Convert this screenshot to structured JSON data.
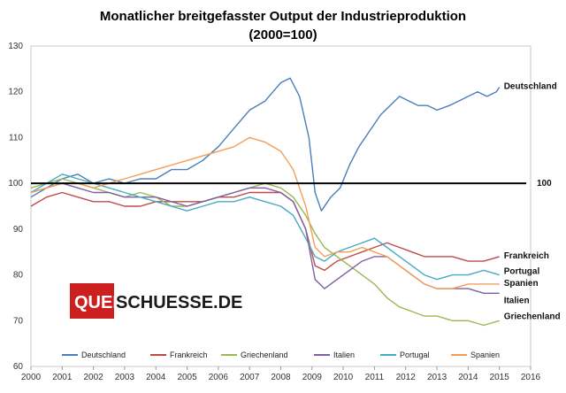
{
  "chart_data": {
    "type": "line",
    "title": "Monatlicher breitgefasster Output der Industrieproduktion",
    "subtitle": "(2000=100)",
    "xlabel": "",
    "ylabel": "",
    "xlim": [
      2000,
      2016
    ],
    "ylim": [
      60,
      130
    ],
    "y_ticks": [
      60,
      70,
      80,
      90,
      100,
      110,
      120,
      130
    ],
    "x_ticks": [
      "2000",
      "2001",
      "2002",
      "2003",
      "2004",
      "2005",
      "2006",
      "2007",
      "2008",
      "2009",
      "2010",
      "2011",
      "2012",
      "2013",
      "2014",
      "2015",
      "2016"
    ],
    "grid": false,
    "legend_position": "bottom",
    "reference_line": {
      "value": 100,
      "label": "100",
      "color": "#000000"
    },
    "watermark": {
      "part1": "QUER",
      "part2": "SCHUESSE.DE"
    },
    "series": [
      {
        "name": "Deutschland",
        "end_label": "Deutschland",
        "color": "#4a7ebb",
        "points": [
          [
            2000.0,
            97
          ],
          [
            2000.5,
            99
          ],
          [
            2001.0,
            101
          ],
          [
            2001.5,
            102
          ],
          [
            2002.0,
            100
          ],
          [
            2002.5,
            101
          ],
          [
            2003.0,
            100
          ],
          [
            2003.5,
            101
          ],
          [
            2004.0,
            101
          ],
          [
            2004.5,
            103
          ],
          [
            2005.0,
            103
          ],
          [
            2005.5,
            105
          ],
          [
            2006.0,
            108
          ],
          [
            2006.5,
            112
          ],
          [
            2007.0,
            116
          ],
          [
            2007.5,
            118
          ],
          [
            2008.0,
            122
          ],
          [
            2008.3,
            123
          ],
          [
            2008.6,
            119
          ],
          [
            2008.9,
            110
          ],
          [
            2009.1,
            98
          ],
          [
            2009.3,
            94
          ],
          [
            2009.6,
            97
          ],
          [
            2009.9,
            99
          ],
          [
            2010.2,
            104
          ],
          [
            2010.5,
            108
          ],
          [
            2010.9,
            112
          ],
          [
            2011.2,
            115
          ],
          [
            2011.5,
            117
          ],
          [
            2011.8,
            119
          ],
          [
            2012.1,
            118
          ],
          [
            2012.4,
            117
          ],
          [
            2012.7,
            117
          ],
          [
            2013.0,
            116
          ],
          [
            2013.4,
            117
          ],
          [
            2013.7,
            118
          ],
          [
            2014.0,
            119
          ],
          [
            2014.3,
            120
          ],
          [
            2014.6,
            119
          ],
          [
            2014.9,
            120
          ],
          [
            2015.0,
            121
          ]
        ]
      },
      {
        "name": "Frankreich",
        "end_label": "Frankreich",
        "color": "#be4b48",
        "points": [
          [
            2000.0,
            95
          ],
          [
            2000.5,
            97
          ],
          [
            2001.0,
            98
          ],
          [
            2001.5,
            97
          ],
          [
            2002.0,
            96
          ],
          [
            2002.5,
            96
          ],
          [
            2003.0,
            95
          ],
          [
            2003.5,
            95
          ],
          [
            2004.0,
            96
          ],
          [
            2004.5,
            96
          ],
          [
            2005.0,
            96
          ],
          [
            2005.5,
            96
          ],
          [
            2006.0,
            97
          ],
          [
            2006.5,
            97
          ],
          [
            2007.0,
            98
          ],
          [
            2007.5,
            98
          ],
          [
            2008.0,
            98
          ],
          [
            2008.4,
            96
          ],
          [
            2008.8,
            90
          ],
          [
            2009.1,
            82
          ],
          [
            2009.4,
            81
          ],
          [
            2009.8,
            83
          ],
          [
            2010.2,
            84
          ],
          [
            2010.6,
            85
          ],
          [
            2011.0,
            86
          ],
          [
            2011.4,
            87
          ],
          [
            2011.8,
            86
          ],
          [
            2012.2,
            85
          ],
          [
            2012.6,
            84
          ],
          [
            2013.0,
            84
          ],
          [
            2013.5,
            84
          ],
          [
            2014.0,
            83
          ],
          [
            2014.5,
            83
          ],
          [
            2015.0,
            84
          ]
        ]
      },
      {
        "name": "Griechenland",
        "end_label": "Griechenland",
        "color": "#98b954",
        "points": [
          [
            2000.0,
            99
          ],
          [
            2000.5,
            100
          ],
          [
            2001.0,
            101
          ],
          [
            2001.5,
            100
          ],
          [
            2002.0,
            99
          ],
          [
            2002.5,
            98
          ],
          [
            2003.0,
            97
          ],
          [
            2003.5,
            98
          ],
          [
            2004.0,
            97
          ],
          [
            2004.5,
            95
          ],
          [
            2005.0,
            95
          ],
          [
            2005.5,
            96
          ],
          [
            2006.0,
            97
          ],
          [
            2006.5,
            98
          ],
          [
            2007.0,
            99
          ],
          [
            2007.5,
            100
          ],
          [
            2008.0,
            99
          ],
          [
            2008.4,
            97
          ],
          [
            2008.8,
            93
          ],
          [
            2009.1,
            89
          ],
          [
            2009.4,
            86
          ],
          [
            2009.8,
            84
          ],
          [
            2010.2,
            82
          ],
          [
            2010.6,
            80
          ],
          [
            2011.0,
            78
          ],
          [
            2011.4,
            75
          ],
          [
            2011.8,
            73
          ],
          [
            2012.2,
            72
          ],
          [
            2012.6,
            71
          ],
          [
            2013.0,
            71
          ],
          [
            2013.5,
            70
          ],
          [
            2014.0,
            70
          ],
          [
            2014.5,
            69
          ],
          [
            2015.0,
            70
          ]
        ]
      },
      {
        "name": "Italien",
        "end_label": "Italien",
        "color": "#7d60a0",
        "points": [
          [
            2000.0,
            98
          ],
          [
            2000.5,
            99
          ],
          [
            2001.0,
            100
          ],
          [
            2001.5,
            99
          ],
          [
            2002.0,
            98
          ],
          [
            2002.5,
            98
          ],
          [
            2003.0,
            97
          ],
          [
            2003.5,
            97
          ],
          [
            2004.0,
            97
          ],
          [
            2004.5,
            96
          ],
          [
            2005.0,
            95
          ],
          [
            2005.5,
            96
          ],
          [
            2006.0,
            97
          ],
          [
            2006.5,
            98
          ],
          [
            2007.0,
            99
          ],
          [
            2007.5,
            99
          ],
          [
            2008.0,
            98
          ],
          [
            2008.4,
            96
          ],
          [
            2008.8,
            90
          ],
          [
            2009.1,
            79
          ],
          [
            2009.4,
            77
          ],
          [
            2009.8,
            79
          ],
          [
            2010.2,
            81
          ],
          [
            2010.6,
            83
          ],
          [
            2011.0,
            84
          ],
          [
            2011.4,
            84
          ],
          [
            2011.8,
            82
          ],
          [
            2012.2,
            80
          ],
          [
            2012.6,
            78
          ],
          [
            2013.0,
            77
          ],
          [
            2013.5,
            77
          ],
          [
            2014.0,
            77
          ],
          [
            2014.5,
            76
          ],
          [
            2015.0,
            76
          ]
        ]
      },
      {
        "name": "Portugal",
        "end_label": "Portugal",
        "color": "#46aac5",
        "points": [
          [
            2000.0,
            98
          ],
          [
            2000.5,
            100
          ],
          [
            2001.0,
            102
          ],
          [
            2001.5,
            101
          ],
          [
            2002.0,
            100
          ],
          [
            2002.5,
            99
          ],
          [
            2003.0,
            98
          ],
          [
            2003.5,
            97
          ],
          [
            2004.0,
            96
          ],
          [
            2004.5,
            95
          ],
          [
            2005.0,
            94
          ],
          [
            2005.5,
            95
          ],
          [
            2006.0,
            96
          ],
          [
            2006.5,
            96
          ],
          [
            2007.0,
            97
          ],
          [
            2007.5,
            96
          ],
          [
            2008.0,
            95
          ],
          [
            2008.4,
            93
          ],
          [
            2008.8,
            88
          ],
          [
            2009.1,
            84
          ],
          [
            2009.4,
            83
          ],
          [
            2009.8,
            85
          ],
          [
            2010.2,
            86
          ],
          [
            2010.6,
            87
          ],
          [
            2011.0,
            88
          ],
          [
            2011.4,
            86
          ],
          [
            2011.8,
            84
          ],
          [
            2012.2,
            82
          ],
          [
            2012.6,
            80
          ],
          [
            2013.0,
            79
          ],
          [
            2013.5,
            80
          ],
          [
            2014.0,
            80
          ],
          [
            2014.5,
            81
          ],
          [
            2015.0,
            80
          ]
        ]
      },
      {
        "name": "Spanien",
        "end_label": "Spanien",
        "color": "#f59d56",
        "points": [
          [
            2000.0,
            98
          ],
          [
            2000.5,
            99
          ],
          [
            2001.0,
            100
          ],
          [
            2001.5,
            100
          ],
          [
            2002.0,
            99
          ],
          [
            2002.5,
            100
          ],
          [
            2003.0,
            101
          ],
          [
            2003.5,
            102
          ],
          [
            2004.0,
            103
          ],
          [
            2004.5,
            104
          ],
          [
            2005.0,
            105
          ],
          [
            2005.5,
            106
          ],
          [
            2006.0,
            107
          ],
          [
            2006.5,
            108
          ],
          [
            2007.0,
            110
          ],
          [
            2007.5,
            109
          ],
          [
            2008.0,
            107
          ],
          [
            2008.4,
            103
          ],
          [
            2008.8,
            95
          ],
          [
            2009.1,
            86
          ],
          [
            2009.4,
            84
          ],
          [
            2009.8,
            85
          ],
          [
            2010.2,
            85
          ],
          [
            2010.6,
            86
          ],
          [
            2011.0,
            85
          ],
          [
            2011.4,
            84
          ],
          [
            2011.8,
            82
          ],
          [
            2012.2,
            80
          ],
          [
            2012.6,
            78
          ],
          [
            2013.0,
            77
          ],
          [
            2013.5,
            77
          ],
          [
            2014.0,
            78
          ],
          [
            2014.5,
            78
          ],
          [
            2015.0,
            78
          ]
        ]
      }
    ]
  }
}
